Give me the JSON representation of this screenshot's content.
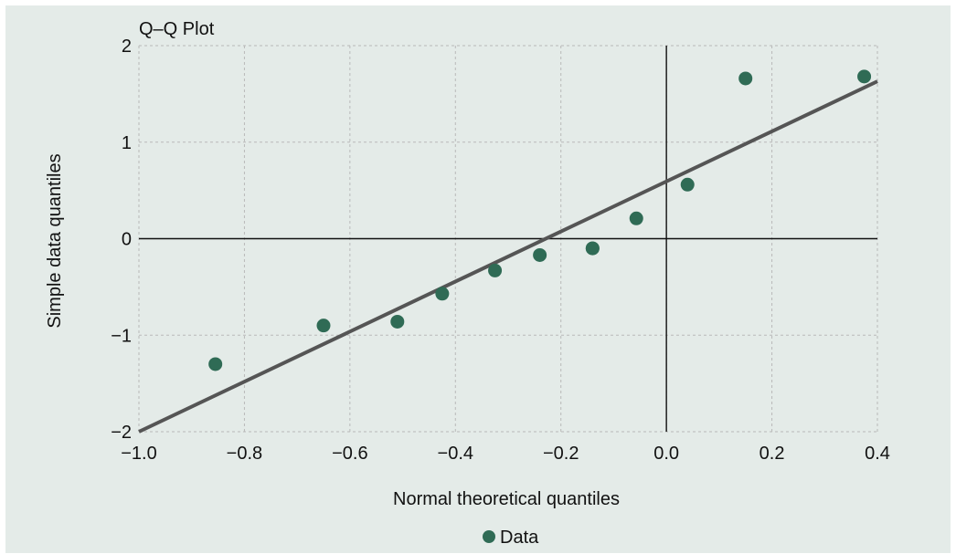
{
  "chart_data": {
    "type": "scatter",
    "title": "Q–Q Plot",
    "xlabel": "Normal theoretical quantiles",
    "ylabel": "Simple data quantiles",
    "xlim": [
      -1.0,
      0.4
    ],
    "ylim": [
      -2,
      2
    ],
    "x_ticks": [
      -1.0,
      -0.8,
      -0.6,
      -0.4,
      -0.2,
      0.0,
      0.2,
      0.4
    ],
    "x_tick_labels": [
      "−1.0",
      "−0.8",
      "−0.6",
      "−0.4",
      "−0.2",
      "0.0",
      "0.2",
      "0.4"
    ],
    "y_ticks": [
      2,
      1,
      0,
      -1,
      -2
    ],
    "y_tick_labels": [
      "2",
      "1",
      "0",
      "−1",
      "−2"
    ],
    "grid": true,
    "legend_position": "bottom-center",
    "series": [
      {
        "name": "Data",
        "color": "#2f6b55",
        "points": [
          {
            "x": -0.855,
            "y": -1.3
          },
          {
            "x": -0.65,
            "y": -0.9
          },
          {
            "x": -0.51,
            "y": -0.86
          },
          {
            "x": -0.425,
            "y": -0.57
          },
          {
            "x": -0.325,
            "y": -0.33
          },
          {
            "x": -0.24,
            "y": -0.17
          },
          {
            "x": -0.14,
            "y": -0.1
          },
          {
            "x": -0.14,
            "y": -0.1
          },
          {
            "x": -0.057,
            "y": 0.21
          },
          {
            "x": 0.04,
            "y": 0.56
          },
          {
            "x": 0.15,
            "y": 1.66
          },
          {
            "x": 0.375,
            "y": 1.68
          }
        ]
      }
    ],
    "fit_line": {
      "color": "#555555",
      "from": {
        "x": -1.0,
        "y": -2.0
      },
      "to": {
        "x": 0.4,
        "y": 1.63
      }
    },
    "axis_lines_color": "#111111"
  }
}
